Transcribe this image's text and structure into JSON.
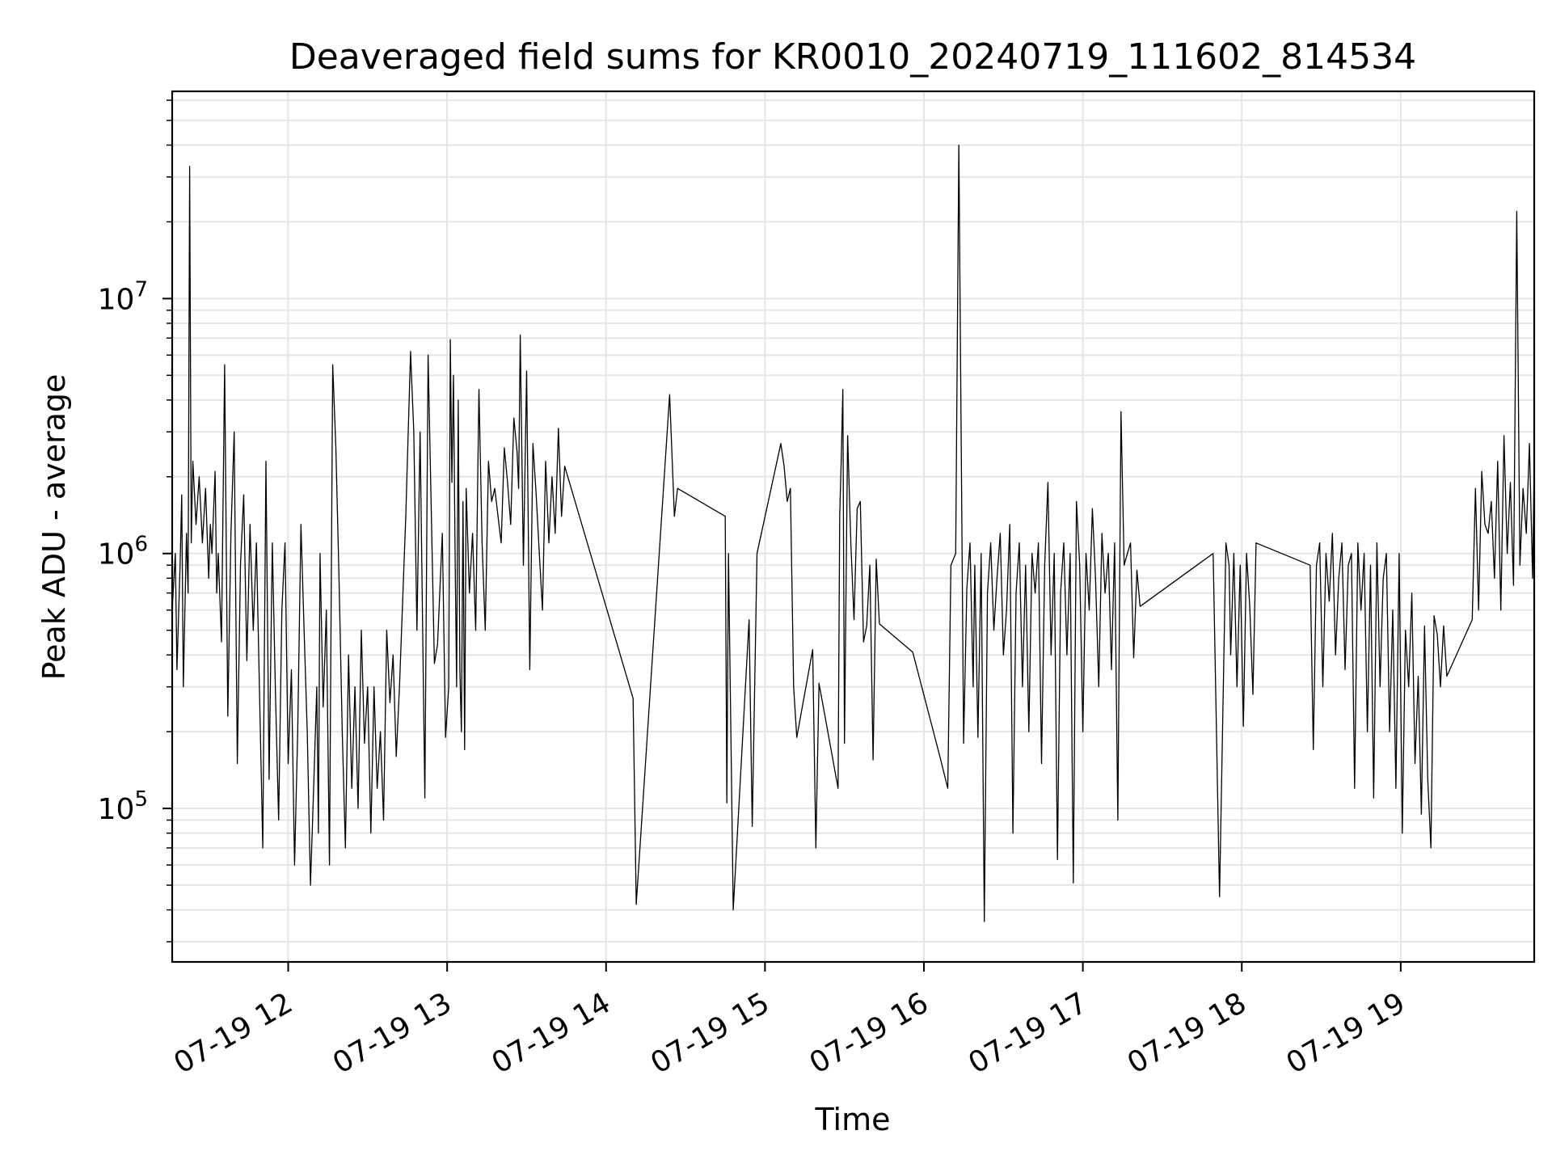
{
  "chart_data": {
    "type": "line",
    "title": "Deaveraged field sums for KR0010_20240719_111602_814534",
    "xlabel": "Time",
    "ylabel": "Peak ADU - average",
    "x_unit": "hours on 07-19",
    "xlim": [
      11.27,
      19.84
    ],
    "ylim": [
      25000,
      65000000
    ],
    "yscale": "log",
    "grid": true,
    "grid_minor": true,
    "line_color": "#000000",
    "grid_color": "#e5e5e5",
    "x_ticks": [
      {
        "value": 12,
        "label": "07-19 12"
      },
      {
        "value": 13,
        "label": "07-19 13"
      },
      {
        "value": 14,
        "label": "07-19 14"
      },
      {
        "value": 15,
        "label": "07-19 15"
      },
      {
        "value": 16,
        "label": "07-19 16"
      },
      {
        "value": 17,
        "label": "07-19 17"
      },
      {
        "value": 18,
        "label": "07-19 18"
      },
      {
        "value": 19,
        "label": "07-19 19"
      }
    ],
    "y_ticks": [
      {
        "value": 100000,
        "base": "10",
        "exp": "5"
      },
      {
        "value": 1000000,
        "base": "10",
        "exp": "6"
      },
      {
        "value": 10000000,
        "base": "10",
        "exp": "7"
      }
    ],
    "series": [
      {
        "name": "",
        "x": [
          11.27,
          11.29,
          11.3,
          11.32,
          11.33,
          11.34,
          11.36,
          11.37,
          11.38,
          11.39,
          11.4,
          11.42,
          11.44,
          11.46,
          11.48,
          11.5,
          11.51,
          11.52,
          11.54,
          11.55,
          11.56,
          11.58,
          11.6,
          11.62,
          11.64,
          11.66,
          11.68,
          11.7,
          11.72,
          11.74,
          11.76,
          11.78,
          11.8,
          11.82,
          11.84,
          11.86,
          11.88,
          11.9,
          11.92,
          11.94,
          11.96,
          11.98,
          12.0,
          12.02,
          12.04,
          12.06,
          12.08,
          12.1,
          12.12,
          12.14,
          12.16,
          12.18,
          12.19,
          12.2,
          12.22,
          12.24,
          12.26,
          12.28,
          12.3,
          12.32,
          12.34,
          12.36,
          12.38,
          12.4,
          12.42,
          12.44,
          12.46,
          12.48,
          12.5,
          12.52,
          12.54,
          12.56,
          12.58,
          12.6,
          12.62,
          12.64,
          12.66,
          12.68,
          12.7,
          12.74,
          12.77,
          12.79,
          12.81,
          12.83,
          12.86,
          12.88,
          12.92,
          12.94,
          12.97,
          12.99,
          13.01,
          13.02,
          13.03,
          13.04,
          13.05,
          13.06,
          13.07,
          13.08,
          13.09,
          13.1,
          13.11,
          13.12,
          13.14,
          13.16,
          13.18,
          13.2,
          13.22,
          13.24,
          13.26,
          13.28,
          13.3,
          13.32,
          13.34,
          13.36,
          13.38,
          13.4,
          13.42,
          13.44,
          13.45,
          13.46,
          13.48,
          13.5,
          13.52,
          13.54,
          13.56,
          13.58,
          13.6,
          13.62,
          13.64,
          13.66,
          13.68,
          13.7,
          13.72,
          13.74,
          14.17,
          14.19,
          14.4,
          14.43,
          14.45,
          14.75,
          14.76,
          14.77,
          14.8,
          14.9,
          14.92,
          14.95,
          15.1,
          15.12,
          15.14,
          15.16,
          15.18,
          15.2,
          15.3,
          15.32,
          15.34,
          15.46,
          15.47,
          15.48,
          15.49,
          15.5,
          15.52,
          15.54,
          15.56,
          15.58,
          15.6,
          15.62,
          15.64,
          15.66,
          15.68,
          15.7,
          15.72,
          15.93,
          16.1,
          16.15,
          16.17,
          16.2,
          16.22,
          16.25,
          16.27,
          16.29,
          16.31,
          16.32,
          16.34,
          16.36,
          16.38,
          16.4,
          16.42,
          16.44,
          16.46,
          16.48,
          16.5,
          16.52,
          16.54,
          16.56,
          16.58,
          16.6,
          16.62,
          16.64,
          16.66,
          16.68,
          16.7,
          16.72,
          16.74,
          16.76,
          16.78,
          16.8,
          16.82,
          16.84,
          16.86,
          16.88,
          16.9,
          16.92,
          16.94,
          16.96,
          16.98,
          17.0,
          17.02,
          17.04,
          17.06,
          17.08,
          17.1,
          17.12,
          17.14,
          17.16,
          17.18,
          17.2,
          17.22,
          17.24,
          17.26,
          17.28,
          17.3,
          17.32,
          17.34,
          17.36,
          17.82,
          17.86,
          17.9,
          17.92,
          17.93,
          17.95,
          17.97,
          17.99,
          18.01,
          18.03,
          18.05,
          18.07,
          18.09,
          18.43,
          18.45,
          18.47,
          18.49,
          18.51,
          18.53,
          18.55,
          18.57,
          18.59,
          18.61,
          18.63,
          18.65,
          18.67,
          18.69,
          18.71,
          18.73,
          18.75,
          18.77,
          18.79,
          18.81,
          18.83,
          18.85,
          18.87,
          18.89,
          18.91,
          18.93,
          18.95,
          18.97,
          18.99,
          19.01,
          19.03,
          19.05,
          19.07,
          19.09,
          19.11,
          19.13,
          19.15,
          19.17,
          19.19,
          19.21,
          19.23,
          19.25,
          19.27,
          19.29,
          19.45,
          19.47,
          19.49,
          19.51,
          19.53,
          19.55,
          19.57,
          19.59,
          19.61,
          19.63,
          19.65,
          19.67,
          19.69,
          19.71,
          19.73,
          19.75,
          19.77,
          19.79,
          19.81,
          19.83,
          19.84
        ],
        "y": [
          600000,
          1000000,
          350000,
          900000,
          1700000,
          300000,
          1200000,
          700000,
          33000000,
          1100000,
          2300000,
          1300000,
          2000000,
          1100000,
          1800000,
          800000,
          1300000,
          1000000,
          2100000,
          700000,
          1000000,
          450000,
          5500000,
          230000,
          1200000,
          3000000,
          150000,
          900000,
          1700000,
          380000,
          1300000,
          500000,
          1100000,
          280000,
          70000,
          2300000,
          130000,
          1100000,
          280000,
          90000,
          600000,
          1100000,
          150000,
          350000,
          60000,
          200000,
          1300000,
          500000,
          200000,
          50000,
          120000,
          300000,
          80000,
          1000000,
          250000,
          600000,
          60000,
          5500000,
          2600000,
          800000,
          200000,
          70000,
          400000,
          120000,
          300000,
          100000,
          500000,
          180000,
          300000,
          80000,
          300000,
          120000,
          200000,
          90000,
          500000,
          260000,
          400000,
          160000,
          300000,
          1400000,
          6200000,
          3000000,
          500000,
          3000000,
          110000,
          6000000,
          370000,
          440000,
          1200000,
          190000,
          300000,
          6900000,
          1900000,
          5000000,
          1000000,
          300000,
          4000000,
          350000,
          200000,
          1600000,
          170000,
          1800000,
          700000,
          1200000,
          500000,
          4400000,
          1100000,
          500000,
          2300000,
          1600000,
          1800000,
          1400000,
          1100000,
          2600000,
          1900000,
          1300000,
          3400000,
          2500000,
          1800000,
          7200000,
          900000,
          5200000,
          350000,
          2700000,
          1700000,
          1000000,
          600000,
          2300000,
          1100000,
          2000000,
          1200000,
          3100000,
          1400000,
          2200000,
          270000,
          42000,
          4200000,
          1400000,
          1800000,
          1400000,
          105000,
          1000000,
          40000,
          550000,
          85000,
          1000000,
          2700000,
          2200000,
          1600000,
          1800000,
          300000,
          190000,
          420000,
          70000,
          310000,
          120000,
          1400000,
          2400000,
          4400000,
          180000,
          2900000,
          1100000,
          550000,
          1500000,
          1600000,
          450000,
          520000,
          900000,
          155000,
          950000,
          530000,
          410000,
          160000,
          120000,
          900000,
          1000000,
          40000000,
          180000,
          730000,
          1100000,
          300000,
          900000,
          190000,
          1000000,
          36000,
          700000,
          1100000,
          500000,
          800000,
          1200000,
          400000,
          600000,
          1300000,
          80000,
          700000,
          1100000,
          300000,
          900000,
          200000,
          1000000,
          700000,
          1100000,
          150000,
          900000,
          1900000,
          400000,
          1000000,
          63000,
          700000,
          1100000,
          400000,
          1000000,
          51000,
          1600000,
          900000,
          200000,
          1000000,
          600000,
          1500000,
          800000,
          300000,
          1200000,
          700000,
          1000000,
          350000,
          1100000,
          90000,
          3600000,
          900000,
          1000000,
          1100000,
          390000,
          860000,
          620000,
          1000000,
          45000,
          1100000,
          900000,
          400000,
          1000000,
          300000,
          900000,
          210000,
          1000000,
          620000,
          280000,
          1100000,
          900000,
          170000,
          900000,
          1100000,
          300000,
          1000000,
          650000,
          1200000,
          400000,
          800000,
          1100000,
          350000,
          900000,
          1000000,
          120000,
          1100000,
          600000,
          1000000,
          200000,
          900000,
          110000,
          1100000,
          300000,
          800000,
          1000000,
          200000,
          600000,
          120000,
          1000000,
          80000,
          500000,
          300000,
          700000,
          150000,
          330000,
          95000,
          520000,
          130000,
          70000,
          570000,
          480000,
          300000,
          520000,
          330000,
          550000,
          1800000,
          600000,
          2100000,
          1300000,
          1200000,
          1600000,
          800000,
          2300000,
          600000,
          2900000,
          1000000,
          1900000,
          750000,
          22000000,
          900000,
          1800000,
          1200000,
          2700000,
          800000,
          2300000
        ]
      }
    ]
  }
}
